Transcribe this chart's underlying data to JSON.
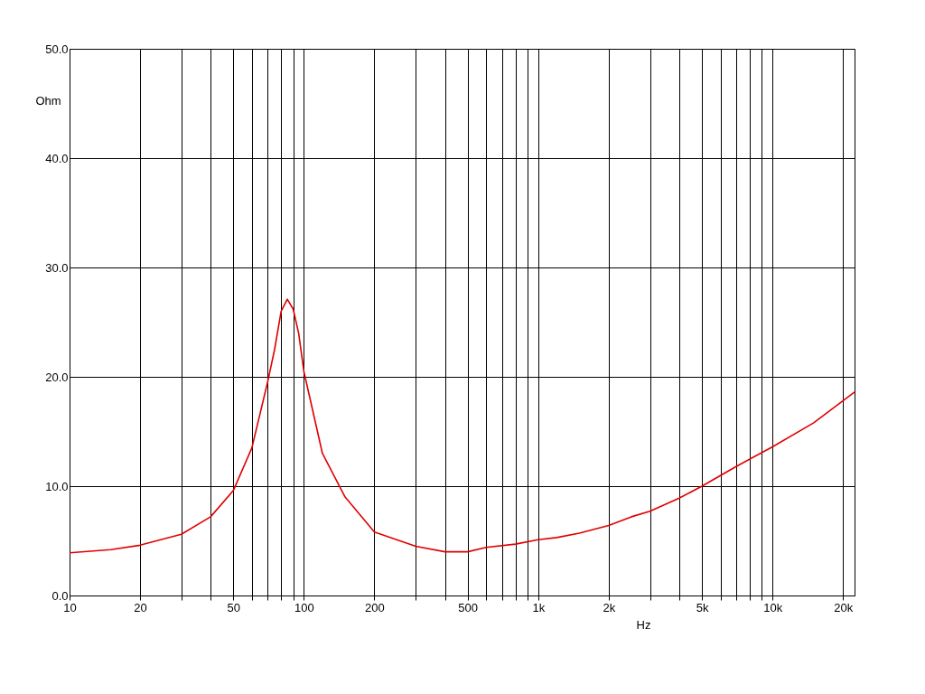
{
  "chart_data": {
    "type": "line",
    "xlabel": "Hz",
    "ylabel": "Ohm",
    "x": [
      10,
      15,
      20,
      30,
      40,
      50,
      60,
      70,
      75,
      80,
      85,
      90,
      95,
      100,
      120,
      150,
      200,
      300,
      400,
      500,
      600,
      800,
      1000,
      1200,
      1500,
      2000,
      2500,
      3000,
      4000,
      5000,
      7000,
      10000,
      15000,
      22400
    ],
    "series": [
      {
        "color": "#e00000",
        "values": [
          3.9,
          4.2,
          4.6,
          5.6,
          7.2,
          9.6,
          13.5,
          19.5,
          22.5,
          26,
          27.1,
          26.2,
          24,
          20.5,
          13,
          9,
          5.8,
          4.5,
          4.0,
          4.0,
          4.4,
          4.7,
          5.1,
          5.3,
          5.7,
          6.4,
          7.2,
          7.7,
          8.9,
          10.0,
          11.8,
          13.6,
          15.8,
          18.6
        ]
      }
    ],
    "log": "x",
    "xlim": [
      10,
      22400
    ],
    "xticks": [
      10,
      20,
      {
        "value": 30,
        "label": null
      },
      {
        "value": 40,
        "label": null
      },
      50,
      {
        "value": 60,
        "label": null
      },
      {
        "value": 70,
        "label": null
      },
      {
        "value": 80,
        "label": null
      },
      {
        "value": 90,
        "label": null
      },
      100,
      200,
      {
        "value": 300,
        "label": null
      },
      {
        "value": 400,
        "label": null
      },
      500,
      {
        "value": 600,
        "label": null
      },
      {
        "value": 700,
        "label": null
      },
      {
        "value": 800,
        "label": null
      },
      {
        "value": 900,
        "label": null
      },
      {
        "value": 1000,
        "label": "1k"
      },
      {
        "value": 2000,
        "label": "2k"
      },
      {
        "value": 3000,
        "label": null
      },
      {
        "value": 4000,
        "label": null
      },
      {
        "value": 5000,
        "label": "5k"
      },
      {
        "value": 6000,
        "label": null
      },
      {
        "value": 7000,
        "label": null
      },
      {
        "value": 8000,
        "label": null
      },
      {
        "value": 9000,
        "label": null
      },
      {
        "value": 10000,
        "label": "10k"
      },
      {
        "value": 20000,
        "label": "20k"
      }
    ],
    "ylim": [
      0,
      50
    ],
    "yticks": [
      {
        "value": 0,
        "label": "0.0"
      },
      {
        "value": 10,
        "label": "10.0"
      },
      {
        "value": 20,
        "label": "20.0"
      },
      {
        "value": 30,
        "label": "30.0"
      },
      {
        "value": 40,
        "label": "40.0"
      },
      {
        "value": 50,
        "label": "50.0"
      }
    ],
    "grid": true,
    "marker": "none",
    "line_style": "solid"
  }
}
